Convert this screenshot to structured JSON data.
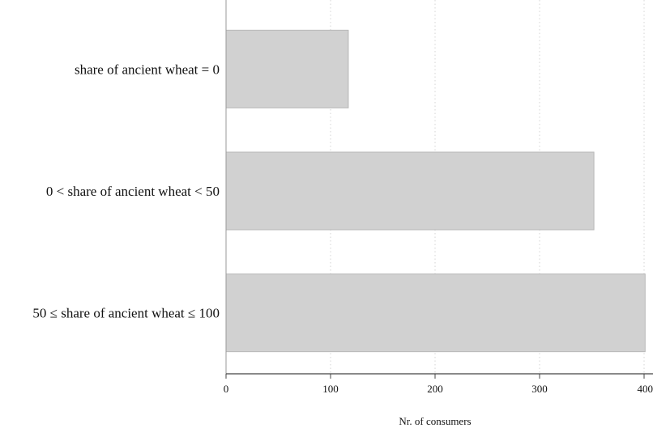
{
  "chart_data": {
    "type": "bar",
    "orientation": "horizontal",
    "categories": [
      "share of ancient wheat = 0",
      "0 < share of ancient wheat < 50",
      "50 ≤ share of ancient wheat ≤ 100"
    ],
    "values": [
      117,
      352,
      403
    ],
    "title": "",
    "xlabel": "Nr. of consumers",
    "ylabel": "",
    "xlim": [
      0,
      400
    ],
    "x_ticks": [
      0,
      100,
      200,
      300,
      400
    ],
    "x_tick_labels": [
      "0",
      "100",
      "200",
      "300",
      "400"
    ],
    "grid": "vertical dotted",
    "legend": "none"
  },
  "colors": {
    "bar_fill": "#d1d1d1",
    "bar_stroke": "#b8b8b8",
    "grid": "#d4d4d4",
    "axis": "#444444",
    "text": "#111111"
  }
}
